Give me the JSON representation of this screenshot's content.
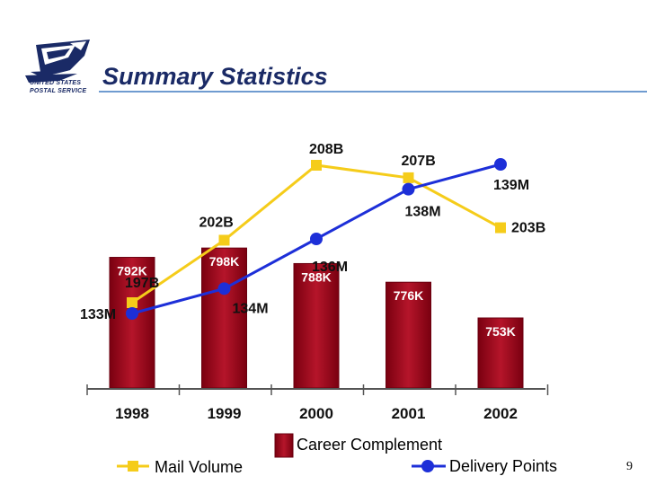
{
  "header": {
    "title": "Summary Statistics",
    "logo_line_1": "UNITED STATES",
    "logo_line_2": "POSTAL SERVICE",
    "logo_icon": "eagle-icon"
  },
  "page_number": "9",
  "colors": {
    "brand_navy": "#1a2a66",
    "rule_blue": "#6f9bd0",
    "mail_volume": "#f5cc1a",
    "delivery_points": "#1d2fd8",
    "career_complement": "#b5152a"
  },
  "chart_data": {
    "type": "bar",
    "categories": [
      "1998",
      "1999",
      "2000",
      "2001",
      "2002"
    ],
    "series": [
      {
        "name": "Career Complement",
        "type": "bar",
        "labels": [
          "792K",
          "798K",
          "788K",
          "776K",
          "753K"
        ],
        "values": [
          792,
          798,
          788,
          776,
          753
        ],
        "unit": "K"
      },
      {
        "name": "Mail Volume",
        "type": "line",
        "marker": "square",
        "labels": [
          "197B",
          "202B",
          "208B",
          "207B",
          "203B"
        ],
        "values": [
          197,
          202,
          208,
          207,
          203
        ],
        "unit": "B"
      },
      {
        "name": "Delivery Points",
        "type": "line",
        "marker": "circle",
        "labels": [
          "133M",
          "134M",
          "136M",
          "138M",
          "139M"
        ],
        "values": [
          133,
          134,
          136,
          138,
          139
        ],
        "unit": "M"
      }
    ],
    "legend": [
      "Career Complement",
      "Mail Volume",
      "Delivery Points"
    ],
    "legend_position": "bottom",
    "grid": false
  }
}
